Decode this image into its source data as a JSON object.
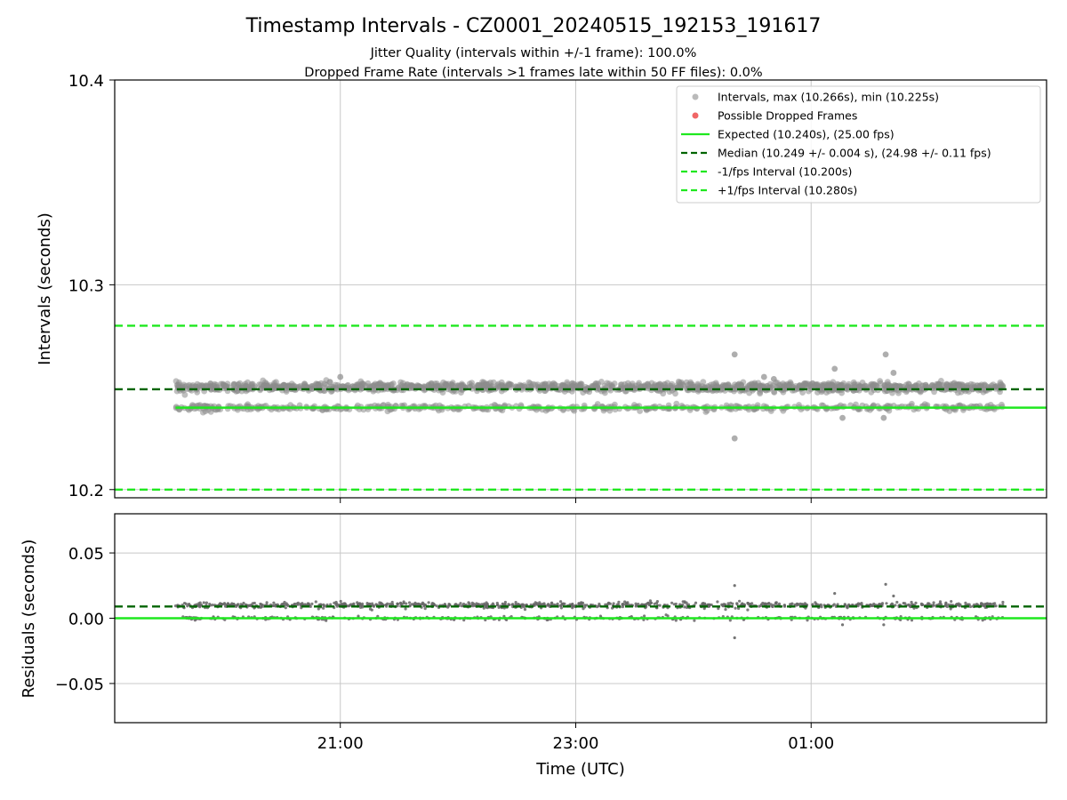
{
  "figure": {
    "title": "Timestamp Intervals - CZ0001_20240515_192153_191617",
    "subtitle_line1": "Jitter Quality (intervals within +/-1 frame): 100.0%",
    "subtitle_line2": "Dropped Frame Rate (intervals >1 frames late within 50 FF files): 0.0%"
  },
  "colors": {
    "intervals": "#8c8c8c",
    "dropped": "#f06666",
    "expected": "#1fe81f",
    "median": "#006400",
    "fps_band": "#1fe81f",
    "residuals": "#666666",
    "grid": "#c8c8c8"
  },
  "chart_data": [
    {
      "type": "scatter",
      "panel": "top",
      "ylabel": "Intervals (seconds)",
      "xlabel": "",
      "ylim": [
        10.196,
        10.4
      ],
      "xlim": [
        "19:05",
        "03:00"
      ],
      "y_ticks": [
        "10.2",
        "10.3",
        "10.4"
      ],
      "x_ticks": [
        "21:00",
        "23:00",
        "01:00"
      ],
      "grid": true,
      "legend_position": "top-right",
      "legend": [
        {
          "label": "Intervals, max (10.266s), min (10.225s)",
          "kind": "point-gray"
        },
        {
          "label": "Possible Dropped Frames",
          "kind": "point-red"
        },
        {
          "label": "Expected (10.240s), (25.00 fps)",
          "kind": "line-solid-green"
        },
        {
          "label": "Median (10.249 +/- 0.004 s), (24.98 +/- 0.11 fps)",
          "kind": "line-dashed-darkgreen"
        },
        {
          "label": "-1/fps Interval (10.200s)",
          "kind": "line-dashed-green"
        },
        {
          "label": "+1/fps Interval (10.280s)",
          "kind": "line-dashed-green"
        }
      ],
      "reference_lines": {
        "expected": 10.24,
        "median": 10.249,
        "minus_1fps": 10.2,
        "plus_1fps": 10.28
      },
      "data_range": {
        "start": "19:36",
        "end": "02:38"
      },
      "series": [
        {
          "name": "Intervals",
          "bands": [
            {
              "center": 10.25,
              "spread": 0.0018
            },
            {
              "center": 10.24,
              "spread": 0.0012
            }
          ],
          "outliers": [
            {
              "x": "00:21",
              "y": 10.266
            },
            {
              "x": "00:21",
              "y": 10.225
            },
            {
              "x": "01:38",
              "y": 10.266
            },
            {
              "x": "01:42",
              "y": 10.257
            },
            {
              "x": "00:36",
              "y": 10.255
            },
            {
              "x": "00:41",
              "y": 10.254
            },
            {
              "x": "01:12",
              "y": 10.259
            },
            {
              "x": "01:16",
              "y": 10.235
            },
            {
              "x": "01:37",
              "y": 10.235
            },
            {
              "x": "21:00",
              "y": 10.255
            }
          ]
        }
      ]
    },
    {
      "type": "scatter",
      "panel": "bottom",
      "ylabel": "Residuals (seconds)",
      "xlabel": "Time (UTC)",
      "ylim": [
        -0.08,
        0.08
      ],
      "xlim": [
        "19:05",
        "03:00"
      ],
      "y_ticks": [
        "0.05",
        "0.00",
        "−0.05"
      ],
      "x_ticks": [
        "21:00",
        "23:00",
        "01:00"
      ],
      "grid": true,
      "reference_lines": {
        "zero": 0.0,
        "median_offset": 0.009
      },
      "series": [
        {
          "name": "Residuals",
          "bands": [
            {
              "center": 0.01,
              "spread": 0.0018
            },
            {
              "center": 0.0,
              "spread": 0.0012
            }
          ],
          "outliers": [
            {
              "x": "00:21",
              "y": 0.025
            },
            {
              "x": "00:21",
              "y": -0.015
            },
            {
              "x": "01:38",
              "y": 0.026
            },
            {
              "x": "01:42",
              "y": 0.017
            },
            {
              "x": "01:12",
              "y": 0.019
            },
            {
              "x": "01:16",
              "y": -0.005
            },
            {
              "x": "01:37",
              "y": -0.005
            }
          ]
        }
      ]
    }
  ]
}
